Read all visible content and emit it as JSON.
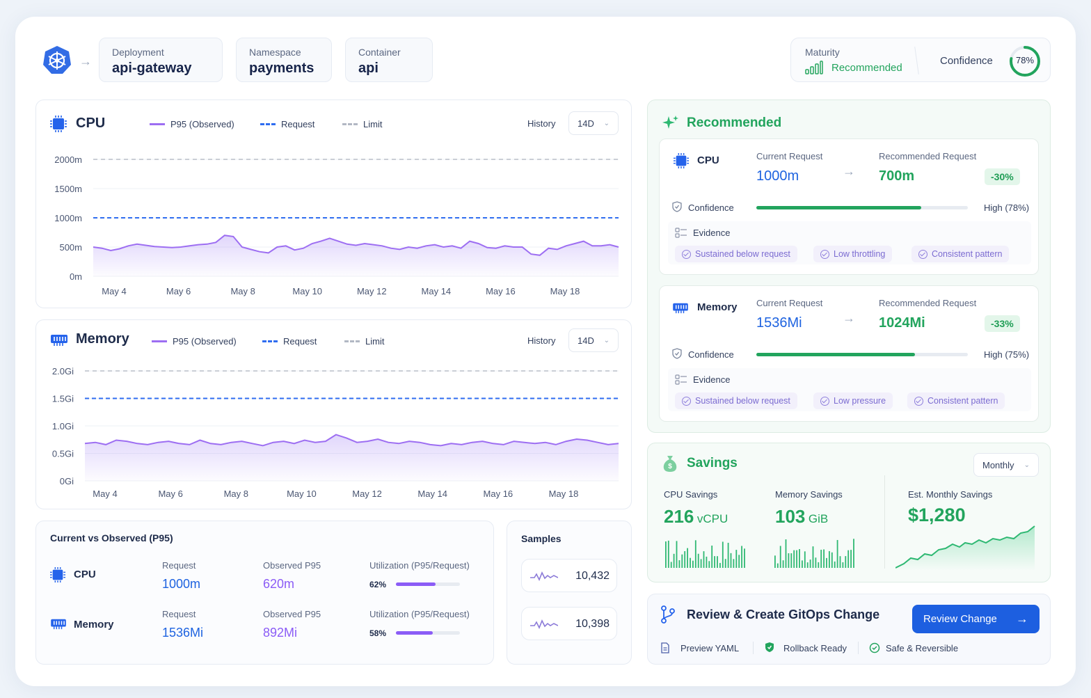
{
  "header": {
    "deployment": {
      "label": "Deployment",
      "value": "api-gateway"
    },
    "namespace": {
      "label": "Namespace",
      "value": "payments"
    },
    "container": {
      "label": "Container",
      "value": "api"
    },
    "maturity": {
      "label": "Maturity",
      "value": "Recommended"
    },
    "confidence": {
      "label": "Confidence",
      "value": "78%",
      "fraction": 0.78
    }
  },
  "cpu_chart": {
    "title": "CPU",
    "legend": [
      "P95 (Observed)",
      "Request",
      "Limit"
    ],
    "history_label": "History",
    "history_value": "14D"
  },
  "memory_chart": {
    "title": "Memory",
    "legend": [
      "P95 (Observed)",
      "Request",
      "Limit"
    ],
    "history_label": "History",
    "history_value": "14D"
  },
  "chart_data": [
    {
      "type": "line",
      "title": "CPU",
      "y_ticks": [
        "2000m",
        "1500m",
        "1000m",
        "500m",
        "0m"
      ],
      "x_ticks": [
        "May 4",
        "May 6",
        "May 8",
        "May 10",
        "May 12",
        "May 14",
        "May 16",
        "May 18"
      ],
      "ylim": [
        0,
        2000
      ],
      "limit": 2000,
      "request": 1000,
      "series": [
        {
          "name": "P95 (Observed)",
          "values": [
            500,
            480,
            440,
            470,
            520,
            550,
            530,
            510,
            500,
            490,
            500,
            520,
            540,
            550,
            580,
            700,
            680,
            500,
            460,
            420,
            400,
            500,
            520,
            450,
            480,
            560,
            600,
            650,
            600,
            550,
            530,
            560,
            540,
            520,
            480,
            460,
            500,
            480,
            520,
            540,
            500,
            520,
            480,
            600,
            560,
            490,
            480,
            520,
            500,
            500,
            380,
            360,
            480,
            460,
            520,
            560,
            600,
            520,
            520,
            540,
            500
          ]
        }
      ]
    },
    {
      "type": "line",
      "title": "Memory",
      "y_ticks": [
        "2.0Gi",
        "1.5Gi",
        "1.0Gi",
        "0.5Gi",
        "0Gi"
      ],
      "x_ticks": [
        "May 4",
        "May 6",
        "May 8",
        "May 10",
        "May 12",
        "May 14",
        "May 16",
        "May 18"
      ],
      "ylim": [
        0,
        2.0
      ],
      "limit": 2.0,
      "request": 1.5,
      "series": [
        {
          "name": "P95 (Observed)",
          "values": [
            0.68,
            0.7,
            0.66,
            0.74,
            0.72,
            0.68,
            0.66,
            0.7,
            0.72,
            0.68,
            0.66,
            0.74,
            0.68,
            0.66,
            0.7,
            0.72,
            0.68,
            0.64,
            0.7,
            0.72,
            0.68,
            0.74,
            0.7,
            0.72,
            0.84,
            0.78,
            0.7,
            0.72,
            0.76,
            0.7,
            0.68,
            0.72,
            0.7,
            0.66,
            0.64,
            0.68,
            0.66,
            0.7,
            0.72,
            0.68,
            0.66,
            0.72,
            0.7,
            0.68,
            0.7,
            0.66,
            0.72,
            0.76,
            0.74,
            0.7,
            0.66,
            0.68
          ]
        }
      ]
    }
  ],
  "current_vs_observed": {
    "title": "Current vs Observed (P95)",
    "rows": [
      {
        "name": "CPU",
        "request_label": "Request",
        "request": "1000m",
        "observed_label": "Observed P95",
        "observed": "620m",
        "util_label": "Utilization (P95/Request)",
        "util": "62%",
        "util_fraction": 0.62
      },
      {
        "name": "Memory",
        "request_label": "Request",
        "request": "1536Mi",
        "observed_label": "Observed P95",
        "observed": "892Mi",
        "util_label": "Utilization (P95/Request)",
        "util": "58%",
        "util_fraction": 0.58
      }
    ]
  },
  "samples": {
    "title": "Samples",
    "cpu": "10,432",
    "memory": "10,398"
  },
  "recommended": {
    "title": "Recommended",
    "cards": [
      {
        "name": "CPU",
        "current_label": "Current Request",
        "current": "1000m",
        "rec_label": "Recommended Request",
        "rec": "700m",
        "delta": "-30%",
        "confidence_label": "Confidence",
        "confidence_text": "High (78%)",
        "confidence_fraction": 0.78,
        "evidence_label": "Evidence",
        "evidence": [
          "Sustained below request",
          "Low throttling",
          "Consistent pattern"
        ]
      },
      {
        "name": "Memory",
        "current_label": "Current Request",
        "current": "1536Mi",
        "rec_label": "Recommended Request",
        "rec": "1024Mi",
        "delta": "-33%",
        "confidence_label": "Confidence",
        "confidence_text": "High (75%)",
        "confidence_fraction": 0.75,
        "evidence_label": "Evidence",
        "evidence": [
          "Sustained below request",
          "Low pressure",
          "Consistent pattern"
        ]
      }
    ]
  },
  "savings": {
    "title": "Savings",
    "period": "Monthly",
    "cpu_label": "CPU Savings",
    "cpu_value": "216",
    "cpu_unit": "vCPU",
    "mem_label": "Memory Savings",
    "mem_value": "103",
    "mem_unit": "GiB",
    "monthly_label": "Est. Monthly Savings",
    "monthly_value": "$1,280"
  },
  "gitops": {
    "title": "Review & Create GitOps Change",
    "button": "Review Change",
    "items": [
      "Preview YAML",
      "Rollback Ready",
      "Safe & Reversible"
    ]
  },
  "colors": {
    "accent_blue": "#1e63e0",
    "green": "#22a45d",
    "purple": "#8b5cf6"
  }
}
